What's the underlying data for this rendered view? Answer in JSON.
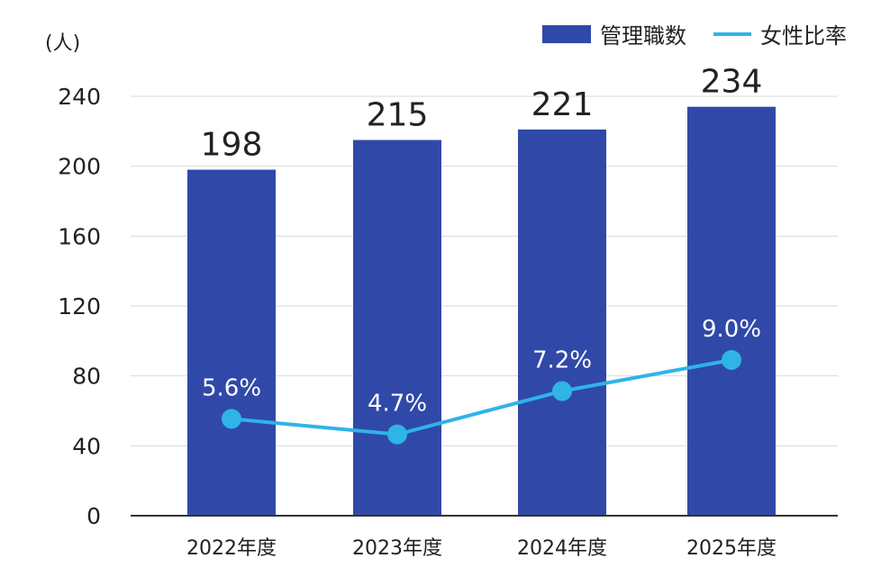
{
  "colors": {
    "bar": "#3049A8",
    "line": "#2EB4E7",
    "grid": "#d9d9d9",
    "axis": "#333333",
    "text": "#222222",
    "line_label": "#ffffff"
  },
  "unit_label": "(人)",
  "legend": {
    "bar_label": "管理職数",
    "line_label": "女性比率",
    "placement": "top-right"
  },
  "chart_data": {
    "type": "bar",
    "categories": [
      "2022年度",
      "2023年度",
      "2024年度",
      "2025年度"
    ],
    "series": [
      {
        "name": "管理職数",
        "type": "bar",
        "values": [
          198,
          215,
          221,
          234
        ],
        "labels": [
          "198",
          "215",
          "221",
          "234"
        ]
      },
      {
        "name": "女性比率",
        "type": "line",
        "values": [
          5.6,
          4.7,
          7.2,
          9.0
        ],
        "labels": [
          "5.6%",
          "4.7%",
          "7.2%",
          "9.0%"
        ]
      }
    ],
    "y_axis": {
      "ticks": [
        0,
        40,
        80,
        120,
        160,
        200,
        240
      ],
      "range": [
        0,
        240
      ]
    },
    "grid": true
  }
}
